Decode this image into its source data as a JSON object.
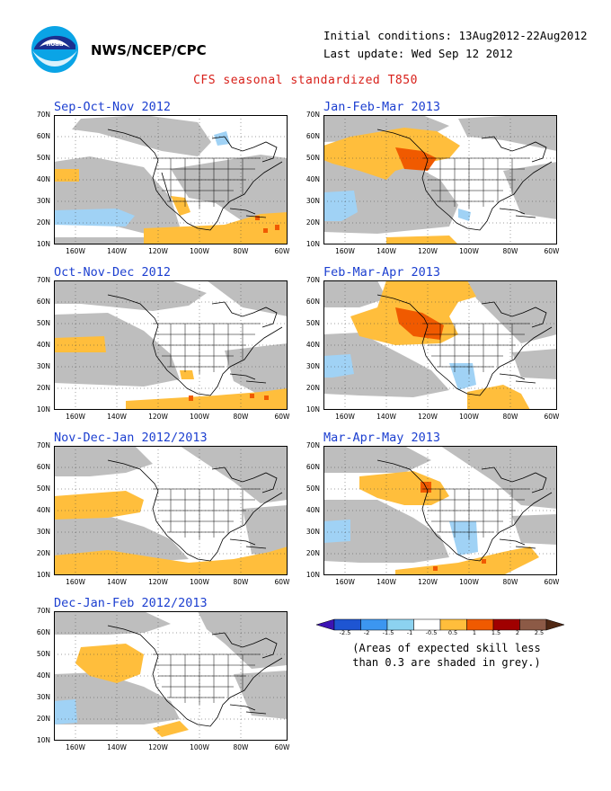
{
  "header": {
    "agency": "NWS/NCEP/CPC",
    "logo_icon": "noaa-logo",
    "initial_conditions": "Initial conditions: 13Aug2012-22Aug2012",
    "last_update": "Last update: Wed Sep 12 2012",
    "main_title": "CFS seasonal standardized T850"
  },
  "axes": {
    "lat_labels": [
      "70N",
      "60N",
      "50N",
      "40N",
      "30N",
      "20N",
      "10N"
    ],
    "lon_labels": [
      "160W",
      "140W",
      "120W",
      "100W",
      "80W",
      "60W"
    ]
  },
  "panels": [
    {
      "title": "Sep-Oct-Nov 2012"
    },
    {
      "title": "Jan-Feb-Mar 2013"
    },
    {
      "title": "Oct-Nov-Dec 2012"
    },
    {
      "title": "Feb-Mar-Apr 2013"
    },
    {
      "title": "Nov-Dec-Jan 2012/2013"
    },
    {
      "title": "Mar-Apr-May 2013"
    },
    {
      "title": "Dec-Jan-Feb 2012/2013"
    }
  ],
  "legend": {
    "labels": [
      "-2.5",
      "-2",
      "-1.5",
      "-1",
      "-0.5",
      "0.5",
      "1",
      "1.5",
      "2",
      "2.5"
    ],
    "colors": [
      "#3c14b4",
      "#1e55d2",
      "#3c96f0",
      "#8cd2f0",
      "#ffffff",
      "#ffbe3c",
      "#f05a00",
      "#a00000",
      "#8c5a46",
      "#502814"
    ],
    "note_line1": "(Areas of expected skill less",
    "note_line2": "than 0.3 are shaded in grey.)"
  },
  "colors": {
    "grey": "#bebebe",
    "orange": "#ffbe3c",
    "red": "#f05a00",
    "blue": "#a0d2f5",
    "title_blue": "#1c3fd0",
    "title_red": "#d8201a"
  }
}
